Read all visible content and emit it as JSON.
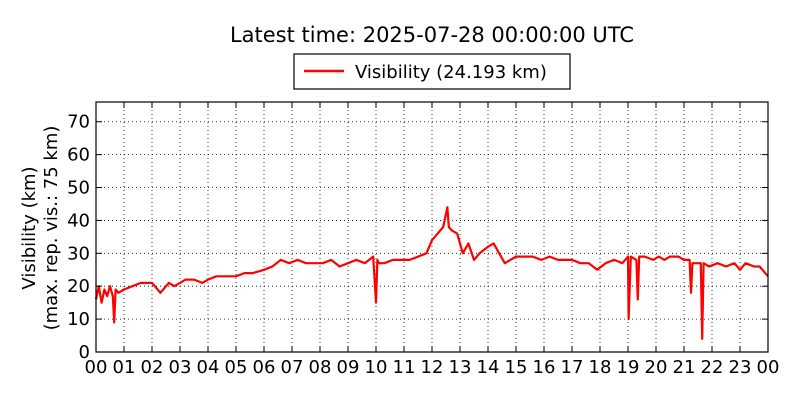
{
  "chart_data": {
    "type": "line",
    "title": "Latest time: 2025-07-28 00:00:00 UTC",
    "ylabel_line1": "Visibility (km)",
    "ylabel_line2": "(max. rep. vis.: 75 km)",
    "xlabel": "",
    "legend_placement": "top-center",
    "grid": true,
    "xlim": [
      0,
      24
    ],
    "ylim": [
      0,
      76
    ],
    "xticks": [
      0,
      1,
      2,
      3,
      4,
      5,
      6,
      7,
      8,
      9,
      10,
      11,
      12,
      13,
      14,
      15,
      16,
      17,
      18,
      19,
      20,
      21,
      22,
      23,
      24
    ],
    "xtick_labels": [
      "00",
      "01",
      "02",
      "03",
      "04",
      "05",
      "06",
      "07",
      "08",
      "09",
      "10",
      "11",
      "12",
      "13",
      "14",
      "15",
      "16",
      "17",
      "18",
      "19",
      "20",
      "21",
      "22",
      "23",
      "00"
    ],
    "yticks": [
      0,
      10,
      20,
      30,
      40,
      50,
      60,
      70
    ],
    "ytick_labels": [
      "0",
      "10",
      "20",
      "30",
      "40",
      "50",
      "60",
      "70"
    ],
    "series": [
      {
        "name": "Visibility (24.193 km)",
        "color": "#ff0000",
        "x": [
          0,
          0.1,
          0.2,
          0.3,
          0.4,
          0.5,
          0.6,
          0.65,
          0.7,
          0.8,
          1,
          1.3,
          1.6,
          2,
          2.3,
          2.6,
          2.8,
          3,
          3.2,
          3.5,
          3.8,
          4,
          4.3,
          4.6,
          5,
          5.3,
          5.6,
          6,
          6.3,
          6.6,
          6.9,
          7.2,
          7.5,
          7.8,
          8.1,
          8.4,
          8.7,
          9,
          9.3,
          9.6,
          9.9,
          10,
          10.05,
          10.1,
          10.3,
          10.6,
          10.9,
          11.2,
          11.5,
          11.8,
          12,
          12.2,
          12.4,
          12.55,
          12.6,
          12.7,
          12.9,
          13.1,
          13.3,
          13.5,
          13.7,
          14,
          14.2,
          14.4,
          14.6,
          14.8,
          15,
          15.3,
          15.6,
          15.9,
          16.2,
          16.5,
          16.8,
          17,
          17.3,
          17.6,
          17.9,
          18.2,
          18.5,
          18.8,
          19,
          19.02,
          19.1,
          19.3,
          19.35,
          19.4,
          19.6,
          19.9,
          20.1,
          20.3,
          20.5,
          20.8,
          21,
          21.2,
          21.25,
          21.3,
          21.6,
          21.65,
          21.7,
          21.9,
          22.2,
          22.5,
          22.8,
          23,
          23.2,
          23.5,
          23.7,
          24
        ],
        "values": [
          16,
          20,
          15,
          19,
          17,
          20,
          17,
          9,
          19,
          18,
          19,
          20,
          21,
          21,
          18,
          21,
          20,
          21,
          22,
          22,
          21,
          22,
          23,
          23,
          23,
          24,
          24,
          25,
          26,
          28,
          27,
          28,
          27,
          27,
          27,
          28,
          26,
          27,
          28,
          27,
          29,
          15,
          28,
          27,
          27,
          28,
          28,
          28,
          29,
          30,
          34,
          36,
          38,
          44,
          38,
          37,
          36,
          30,
          33,
          28,
          30,
          32,
          33,
          30,
          27,
          28,
          29,
          29,
          29,
          28,
          29,
          28,
          28,
          28,
          27,
          27,
          25,
          27,
          28,
          27,
          29,
          10,
          29,
          28,
          16,
          29,
          29,
          28,
          29,
          28,
          29,
          29,
          28,
          28,
          18,
          27,
          27,
          4,
          27,
          26,
          27,
          26,
          27,
          25,
          27,
          26,
          26,
          23
        ]
      }
    ]
  }
}
